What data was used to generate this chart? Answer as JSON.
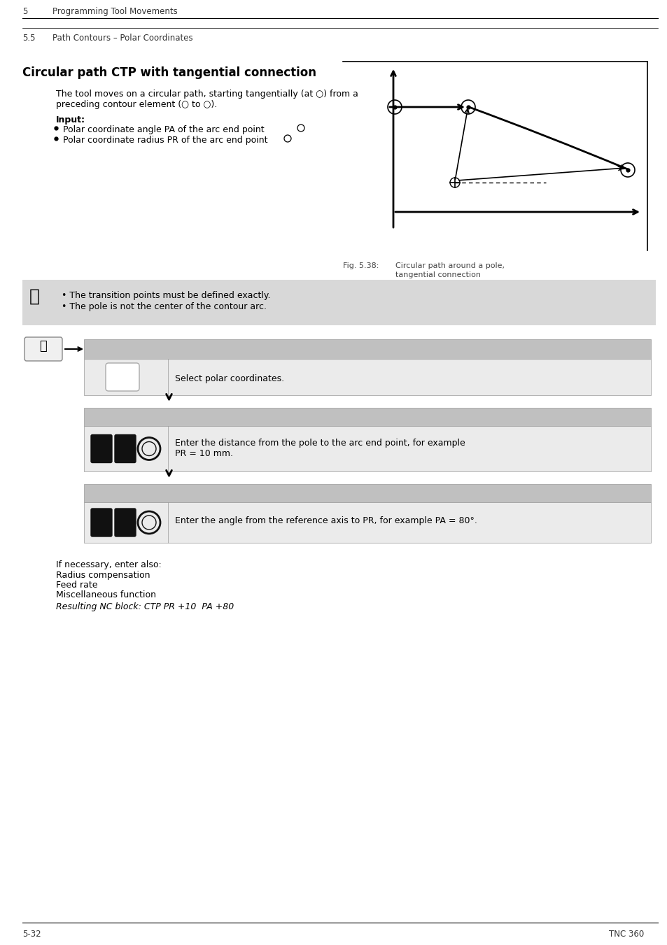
{
  "page_header_num": "5",
  "page_header_text": "Programming Tool Movements",
  "page_subheader_num": "5.5",
  "page_subheader_text": "Path Contours – Polar Coordinates",
  "section_title": "Circular path CTP with tangential connection",
  "para_line1": "The tool moves on a circular path, starting tangentially (at ○) from a",
  "para_line2": "preceding contour element (○ to ○).",
  "input_label": "Input:",
  "bullet1_text": "Polar coordinate angle PA of the arc end point",
  "bullet2_text": "Polar coordinate radius PR of the arc end point",
  "note_bullet1": "The transition points must be defined exactly.",
  "note_bullet2": "The pole is not the center of the contour arc.",
  "step1_text": "Select polar coordinates.",
  "step2_line1": "Enter the distance from the pole to the arc end point, for example",
  "step2_line2": "PR = 10 mm.",
  "step3_text": "Enter the angle from the reference axis to PR, for example PA = 80°.",
  "fig_caption_label": "Fig. 5.38:",
  "fig_caption_text1": "Circular path around a pole,",
  "fig_caption_text2": "tangential connection",
  "if_necessary": "If necessary, enter also:",
  "also1": "Radius compensation",
  "also2": "Feed rate",
  "also3": "Miscellaneous function",
  "nc_block": "Resulting NC block: CTP PR +10  PA +80",
  "footer_left": "5-32",
  "footer_right": "TNC 360",
  "bg_color": "#ffffff",
  "note_bg": "#d8d8d8",
  "step_header_bg": "#c0c0c0",
  "step_body_bg": "#ebebeb",
  "text_color": "#000000",
  "gray_text": "#555555"
}
